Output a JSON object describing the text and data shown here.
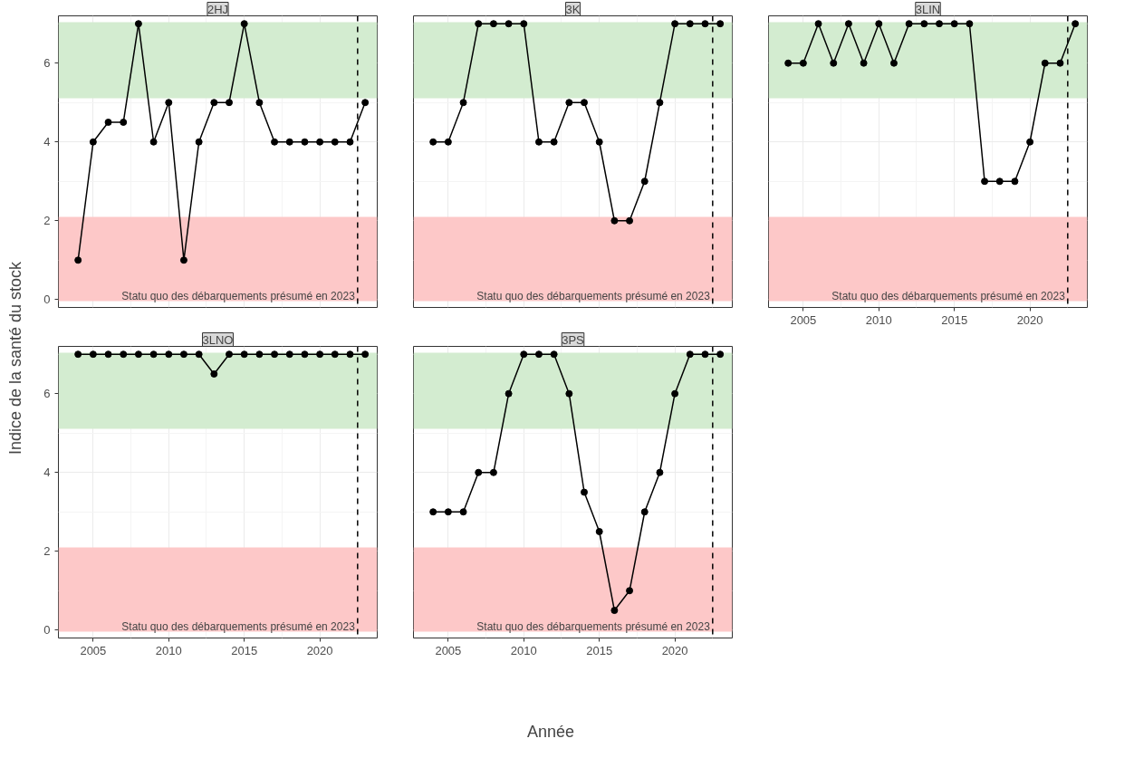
{
  "chart_data": [
    {
      "type": "line",
      "title": "2HJ",
      "ylabel": "Indice de la santé du stock",
      "x": [
        2004,
        2005,
        2006,
        2007,
        2008,
        2009,
        2010,
        2011,
        2012,
        2013,
        2014,
        2015,
        2016,
        2017,
        2018,
        2019,
        2020,
        2021,
        2022,
        2023
      ],
      "series": [
        {
          "color": "#000000",
          "values": [
            1,
            4,
            4.5,
            4.5,
            7,
            4,
            5,
            1,
            4,
            5,
            5,
            7,
            5,
            4,
            4,
            4,
            4,
            4,
            4,
            5
          ]
        }
      ],
      "xlim": [
        2002.7,
        2023.8
      ],
      "ylim": [
        -0.2,
        7.2
      ],
      "xticks": [
        2005,
        2010,
        2015,
        2020
      ],
      "yticks": [
        0,
        2,
        4,
        6
      ],
      "tick_labels": "y",
      "grid": true,
      "marker": "circle",
      "line_style": "solid",
      "bands": [
        {
          "axis": "y",
          "from": 5.1,
          "to": 7.05,
          "color": "#d3ecd0"
        },
        {
          "axis": "y",
          "from": -0.05,
          "to": 2.1,
          "color": "#fdc8c8"
        }
      ],
      "ref_lines": [
        {
          "axis": "x",
          "value": 2022.5,
          "label": "Statu quo des débarquements présumé en 2023",
          "line_style": "dashed",
          "color": "#000000"
        }
      ]
    },
    {
      "type": "line",
      "title": "3K",
      "x": [
        2004,
        2005,
        2006,
        2007,
        2008,
        2009,
        2010,
        2011,
        2012,
        2013,
        2014,
        2015,
        2016,
        2017,
        2018,
        2019,
        2020,
        2021,
        2022,
        2023
      ],
      "series": [
        {
          "color": "#000000",
          "values": [
            4,
            4,
            5,
            7,
            7,
            7,
            7,
            4,
            4,
            5,
            5,
            4,
            2,
            2,
            3,
            5,
            7,
            7,
            7,
            7
          ]
        }
      ],
      "xlim": [
        2002.7,
        2023.8
      ],
      "ylim": [
        -0.2,
        7.2
      ],
      "xticks": [
        2005,
        2010,
        2015,
        2020
      ],
      "yticks": [
        0,
        2,
        4,
        6
      ],
      "tick_labels": false,
      "grid": true,
      "marker": "circle",
      "line_style": "solid",
      "bands": [
        {
          "axis": "y",
          "from": 5.1,
          "to": 7.05,
          "color": "#d3ecd0"
        },
        {
          "axis": "y",
          "from": -0.05,
          "to": 2.1,
          "color": "#fdc8c8"
        }
      ],
      "ref_lines": [
        {
          "axis": "x",
          "value": 2022.5,
          "label": "Statu quo des débarquements présumé en 2023",
          "line_style": "dashed",
          "color": "#000000"
        }
      ]
    },
    {
      "type": "line",
      "title": "3LIN",
      "x": [
        2004,
        2005,
        2006,
        2007,
        2008,
        2009,
        2010,
        2011,
        2012,
        2013,
        2014,
        2015,
        2016,
        2017,
        2018,
        2019,
        2020,
        2021,
        2022,
        2023
      ],
      "series": [
        {
          "color": "#000000",
          "values": [
            6,
            6,
            7,
            6,
            7,
            6,
            7,
            6,
            7,
            7,
            7,
            7,
            7,
            3,
            3,
            3,
            4,
            6,
            6,
            7
          ]
        }
      ],
      "xlim": [
        2002.7,
        2023.8
      ],
      "ylim": [
        -0.2,
        7.2
      ],
      "xticks": [
        2005,
        2010,
        2015,
        2020
      ],
      "yticks": [
        0,
        2,
        4,
        6
      ],
      "tick_labels": "x",
      "grid": true,
      "marker": "circle",
      "line_style": "solid",
      "bands": [
        {
          "axis": "y",
          "from": 5.1,
          "to": 7.05,
          "color": "#d3ecd0"
        },
        {
          "axis": "y",
          "from": -0.05,
          "to": 2.1,
          "color": "#fdc8c8"
        }
      ],
      "ref_lines": [
        {
          "axis": "x",
          "value": 2022.5,
          "label": "Statu quo des débarquements présumé en 2023",
          "line_style": "dashed",
          "color": "#000000"
        }
      ]
    },
    {
      "type": "line",
      "title": "3LNO",
      "x": [
        2004,
        2005,
        2006,
        2007,
        2008,
        2009,
        2010,
        2011,
        2012,
        2013,
        2014,
        2015,
        2016,
        2017,
        2018,
        2019,
        2020,
        2021,
        2022,
        2023
      ],
      "series": [
        {
          "color": "#000000",
          "values": [
            7,
            7,
            7,
            7,
            7,
            7,
            7,
            7,
            7,
            6.5,
            7,
            7,
            7,
            7,
            7,
            7,
            7,
            7,
            7,
            7
          ]
        }
      ],
      "xlim": [
        2002.7,
        2023.8
      ],
      "ylim": [
        -0.2,
        7.2
      ],
      "xticks": [
        2005,
        2010,
        2015,
        2020
      ],
      "yticks": [
        0,
        2,
        4,
        6
      ],
      "grid": true,
      "marker": "circle",
      "line_style": "solid",
      "bands": [
        {
          "axis": "y",
          "from": 5.1,
          "to": 7.05,
          "color": "#d3ecd0"
        },
        {
          "axis": "y",
          "from": -0.05,
          "to": 2.1,
          "color": "#fdc8c8"
        }
      ],
      "ref_lines": [
        {
          "axis": "x",
          "value": 2022.5,
          "label": "Statu quo des débarquements présumé en 2023",
          "line_style": "dashed",
          "color": "#000000"
        }
      ]
    },
    {
      "type": "line",
      "title": "3PS",
      "xlabel": "Année",
      "x": [
        2004,
        2005,
        2006,
        2007,
        2008,
        2009,
        2010,
        2011,
        2012,
        2013,
        2014,
        2015,
        2016,
        2017,
        2018,
        2019,
        2020,
        2021,
        2022,
        2023
      ],
      "series": [
        {
          "color": "#000000",
          "values": [
            3,
            3,
            3,
            4,
            4,
            6,
            7,
            7,
            7,
            6,
            3.5,
            2.5,
            0.5,
            1,
            3,
            4,
            6,
            7,
            7,
            7
          ]
        }
      ],
      "xlim": [
        2002.7,
        2023.8
      ],
      "ylim": [
        -0.2,
        7.2
      ],
      "xticks": [
        2005,
        2010,
        2015,
        2020
      ],
      "yticks": [
        0,
        2,
        4,
        6
      ],
      "tick_labels": "x",
      "grid": true,
      "marker": "circle",
      "line_style": "solid",
      "bands": [
        {
          "axis": "y",
          "from": 5.1,
          "to": 7.05,
          "color": "#d3ecd0"
        },
        {
          "axis": "y",
          "from": -0.05,
          "to": 2.1,
          "color": "#fdc8c8"
        }
      ],
      "ref_lines": [
        {
          "axis": "x",
          "value": 2022.5,
          "label": "Statu quo des débarquements présumé en 2023",
          "line_style": "dashed",
          "color": "#000000"
        }
      ]
    }
  ]
}
